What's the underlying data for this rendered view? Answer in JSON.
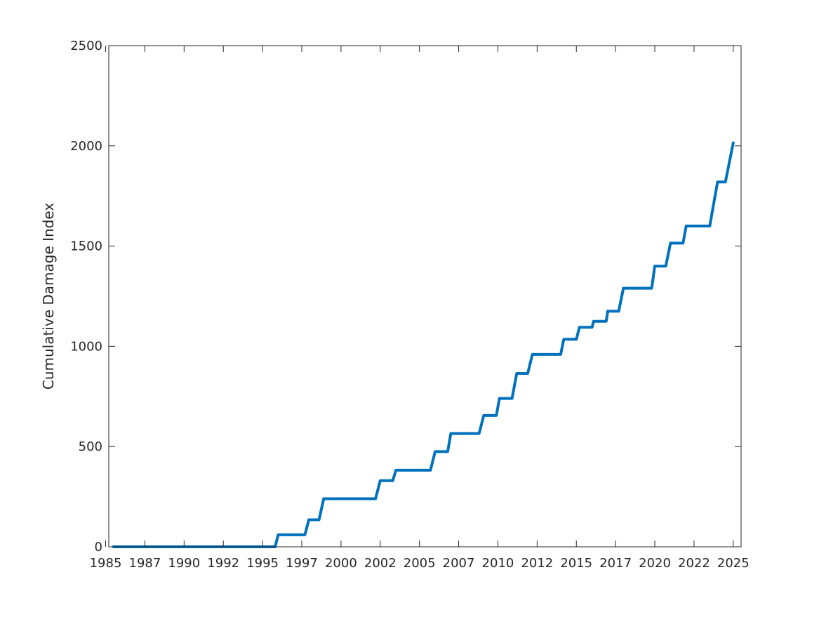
{
  "chart_data": {
    "type": "line",
    "title": "",
    "xlabel": "",
    "ylabel": "Cumulative Damage Index",
    "xlim": [
      1985.2,
      2025.5
    ],
    "ylim": [
      0,
      2500
    ],
    "x_ticks": [
      1985,
      1987.5,
      1990,
      1992.5,
      1995,
      1997.5,
      2000,
      2002.5,
      2005,
      2007.5,
      2010,
      2012.5,
      2015,
      2017.5,
      2020,
      2022.5,
      2025
    ],
    "x_tick_labels": [
      "1985",
      "1987",
      "1990",
      "1992",
      "1995",
      "1997",
      "2000",
      "2002",
      "2005",
      "2007",
      "2010",
      "2012",
      "2015",
      "2017",
      "2020",
      "2022",
      "2025"
    ],
    "y_ticks": [
      0,
      500,
      1000,
      1500,
      2000,
      2500
    ],
    "y_tick_labels": [
      "0",
      "500",
      "1000",
      "1500",
      "2000",
      "2500"
    ],
    "grid": false,
    "legend": "none",
    "line_color": "#0072BD",
    "series": [
      {
        "x": [
          1985.5,
          1995.8,
          1996.0,
          1997.7,
          1997.95,
          1998.6,
          1998.9,
          2002.2,
          2002.5,
          2003.3,
          2003.5,
          2005.7,
          2006.0,
          2006.8,
          2007.0,
          2008.8,
          2009.1,
          2009.9,
          2010.1,
          2010.9,
          2011.2,
          2011.9,
          2012.2,
          2014.0,
          2014.2,
          2015.0,
          2015.2,
          2016.0,
          2016.1,
          2016.9,
          2017.0,
          2017.7,
          2018.0,
          2019.8,
          2020.0,
          2020.7,
          2021.0,
          2021.8,
          2022.0,
          2023.5,
          2024.0,
          2024.5,
          2025.0
        ],
        "y": [
          0,
          0,
          60,
          60,
          135,
          135,
          240,
          240,
          330,
          330,
          382,
          382,
          475,
          475,
          565,
          565,
          655,
          655,
          740,
          740,
          865,
          865,
          960,
          960,
          1035,
          1035,
          1095,
          1095,
          1125,
          1125,
          1175,
          1175,
          1290,
          1290,
          1400,
          1400,
          1515,
          1515,
          1600,
          1600,
          1820,
          1820,
          2015
        ]
      }
    ]
  }
}
